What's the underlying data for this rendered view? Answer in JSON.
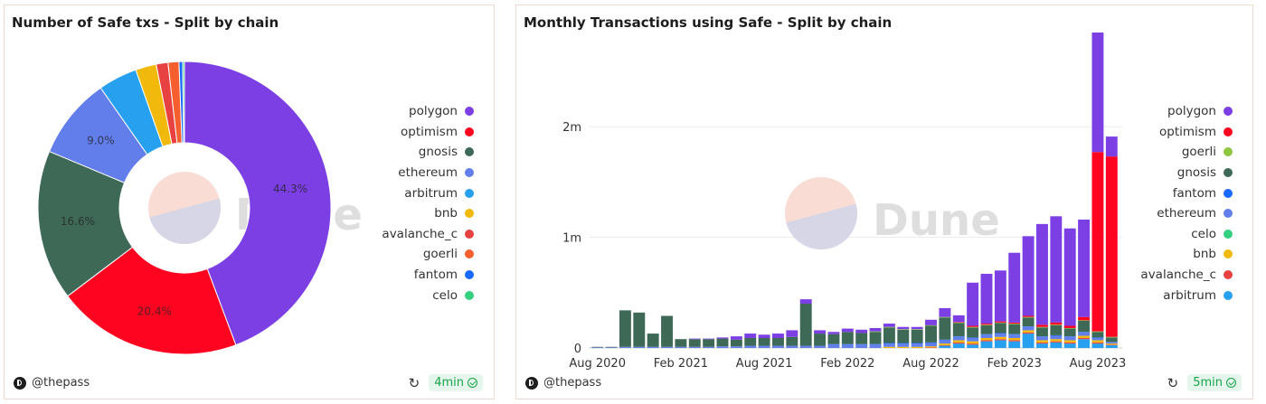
{
  "watermark": "Dune",
  "panels": {
    "pie": {
      "title": "Number of Safe txs - Split by chain",
      "author": "@thepass",
      "freshness": "4min"
    },
    "bar": {
      "title": "Monthly Transactions using Safe - Split by chain",
      "author": "@thepass",
      "freshness": "5min"
    }
  },
  "chart_data": [
    {
      "type": "pie",
      "title": "Number of Safe txs - Split by chain",
      "slices": [
        {
          "label": "polygon",
          "value": 44.3,
          "color": "#7b3fe4",
          "show_label": true
        },
        {
          "label": "optimism",
          "value": 20.4,
          "color": "#ff0420",
          "show_label": true
        },
        {
          "label": "gnosis",
          "value": 16.6,
          "color": "#3e6957",
          "show_label": true
        },
        {
          "label": "ethereum",
          "value": 9.0,
          "color": "#627eea",
          "show_label": true
        },
        {
          "label": "arbitrum",
          "value": 4.3,
          "color": "#28a0f0",
          "show_label": false
        },
        {
          "label": "bnb",
          "value": 2.3,
          "color": "#f0b90b",
          "show_label": false
        },
        {
          "label": "avalanche_c",
          "value": 1.3,
          "color": "#e84142",
          "show_label": false
        },
        {
          "label": "goerli",
          "value": 1.2,
          "color": "#f55e2f",
          "show_label": false
        },
        {
          "label": "fantom",
          "value": 0.4,
          "color": "#1969ff",
          "show_label": false
        },
        {
          "label": "celo",
          "value": 0.2,
          "color": "#35d07f",
          "show_label": false
        }
      ],
      "slice_label_format": "{v}%"
    },
    {
      "type": "bar",
      "stacked": true,
      "title": "Monthly Transactions using Safe - Split by chain",
      "y_ticks": [
        {
          "value": 0,
          "label": "0"
        },
        {
          "value": 1000000,
          "label": "1m"
        },
        {
          "value": 2000000,
          "label": "2m"
        }
      ],
      "ylim": [
        0,
        2850000
      ],
      "x_tick_labels": [
        {
          "index": 0,
          "label": "Aug 2020"
        },
        {
          "index": 6,
          "label": "Feb 2021"
        },
        {
          "index": 12,
          "label": "Aug 2021"
        },
        {
          "index": 18,
          "label": "Feb 2022"
        },
        {
          "index": 24,
          "label": "Aug 2022"
        },
        {
          "index": 30,
          "label": "Feb 2023"
        },
        {
          "index": 36,
          "label": "Aug 2023"
        }
      ],
      "categories": [
        "Aug 2020",
        "Sep 2020",
        "Oct 2020",
        "Nov 2020",
        "Dec 2020",
        "Jan 2021",
        "Feb 2021",
        "Mar 2021",
        "Apr 2021",
        "May 2021",
        "Jun 2021",
        "Jul 2021",
        "Aug 2021",
        "Sep 2021",
        "Oct 2021",
        "Nov 2021",
        "Dec 2021",
        "Jan 2022",
        "Feb 2022",
        "Mar 2022",
        "Apr 2022",
        "May 2022",
        "Jun 2022",
        "Jul 2022",
        "Aug 2022",
        "Sep 2022",
        "Oct 2022",
        "Nov 2022",
        "Dec 2022",
        "Jan 2023",
        "Feb 2023",
        "Mar 2023",
        "Apr 2023",
        "May 2023",
        "Jun 2023",
        "Jul 2023",
        "Aug 2023",
        "Sep 2023"
      ],
      "series": [
        {
          "name": "arbitrum",
          "color": "#28a0f0",
          "values": [
            0,
            0,
            0,
            0,
            0,
            0,
            0,
            0,
            0,
            0,
            0,
            0,
            0,
            0,
            0,
            0,
            0,
            0,
            0,
            0,
            0,
            0,
            0,
            0,
            0,
            20000,
            40000,
            30000,
            60000,
            70000,
            60000,
            130000,
            40000,
            50000,
            40000,
            80000,
            40000,
            25000
          ]
        },
        {
          "name": "avalanche_c",
          "color": "#e84142",
          "values": [
            0,
            0,
            0,
            0,
            0,
            0,
            0,
            0,
            0,
            0,
            0,
            0,
            0,
            0,
            0,
            0,
            0,
            0,
            0,
            0,
            0,
            0,
            0,
            0,
            5000,
            5000,
            10000,
            10000,
            10000,
            10000,
            10000,
            10000,
            10000,
            10000,
            10000,
            10000,
            10000,
            5000
          ]
        },
        {
          "name": "bnb",
          "color": "#f0b90b",
          "values": [
            0,
            0,
            0,
            0,
            0,
            0,
            0,
            0,
            0,
            0,
            0,
            0,
            0,
            0,
            0,
            0,
            0,
            0,
            0,
            0,
            0,
            10000,
            10000,
            10000,
            10000,
            15000,
            20000,
            20000,
            20000,
            20000,
            20000,
            20000,
            20000,
            20000,
            20000,
            20000,
            20000,
            10000
          ]
        },
        {
          "name": "celo",
          "color": "#35d07f",
          "values": [
            0,
            0,
            0,
            0,
            0,
            0,
            0,
            0,
            0,
            0,
            0,
            0,
            0,
            0,
            0,
            0,
            0,
            0,
            0,
            0,
            0,
            0,
            0,
            0,
            0,
            0,
            0,
            0,
            0,
            0,
            0,
            0,
            0,
            0,
            0,
            0,
            0,
            0
          ]
        },
        {
          "name": "ethereum",
          "color": "#627eea",
          "values": [
            5000,
            5000,
            10000,
            10000,
            10000,
            10000,
            10000,
            10000,
            10000,
            15000,
            15000,
            20000,
            20000,
            20000,
            20000,
            20000,
            20000,
            30000,
            30000,
            30000,
            30000,
            30000,
            30000,
            30000,
            30000,
            30000,
            30000,
            30000,
            30000,
            30000,
            30000,
            30000,
            30000,
            30000,
            30000,
            30000,
            20000,
            15000
          ]
        },
        {
          "name": "fantom",
          "color": "#1969ff",
          "values": [
            0,
            0,
            0,
            0,
            0,
            0,
            0,
            0,
            0,
            0,
            0,
            0,
            0,
            0,
            0,
            0,
            0,
            5000,
            5000,
            5000,
            5000,
            5000,
            5000,
            5000,
            5000,
            5000,
            5000,
            5000,
            5000,
            5000,
            5000,
            5000,
            5000,
            5000,
            5000,
            5000,
            5000,
            0
          ]
        },
        {
          "name": "gnosis",
          "color": "#3e6957",
          "values": [
            5000,
            5000,
            330000,
            310000,
            120000,
            280000,
            70000,
            70000,
            70000,
            70000,
            60000,
            70000,
            70000,
            70000,
            80000,
            380000,
            110000,
            90000,
            110000,
            100000,
            110000,
            140000,
            120000,
            120000,
            150000,
            200000,
            120000,
            90000,
            80000,
            90000,
            90000,
            80000,
            80000,
            90000,
            70000,
            100000,
            50000,
            40000
          ]
        },
        {
          "name": "goerli",
          "color": "#8dc63f",
          "values": [
            0,
            0,
            0,
            0,
            0,
            0,
            0,
            0,
            0,
            0,
            0,
            0,
            0,
            0,
            0,
            0,
            0,
            0,
            0,
            0,
            5000,
            5000,
            5000,
            5000,
            5000,
            5000,
            5000,
            5000,
            5000,
            5000,
            5000,
            5000,
            5000,
            5000,
            5000,
            5000,
            5000,
            5000
          ]
        },
        {
          "name": "optimism",
          "color": "#ff0420",
          "values": [
            0,
            0,
            0,
            0,
            0,
            0,
            0,
            0,
            0,
            0,
            0,
            0,
            0,
            0,
            0,
            0,
            0,
            0,
            0,
            0,
            0,
            0,
            0,
            0,
            0,
            0,
            5000,
            10000,
            10000,
            10000,
            10000,
            10000,
            20000,
            20000,
            20000,
            30000,
            1620000,
            1630000
          ]
        },
        {
          "name": "polygon",
          "color": "#7b3fe4",
          "values": [
            0,
            0,
            0,
            0,
            0,
            0,
            0,
            5000,
            5000,
            10000,
            30000,
            40000,
            30000,
            40000,
            60000,
            40000,
            30000,
            20000,
            30000,
            30000,
            30000,
            30000,
            20000,
            20000,
            50000,
            80000,
            60000,
            390000,
            450000,
            460000,
            630000,
            720000,
            910000,
            960000,
            880000,
            880000,
            1080000,
            180000
          ]
        }
      ]
    }
  ],
  "pie_legend": [
    "polygon",
    "optimism",
    "gnosis",
    "ethereum",
    "arbitrum",
    "bnb",
    "avalanche_c",
    "goerli",
    "fantom",
    "celo"
  ],
  "bar_legend": [
    "polygon",
    "optimism",
    "goerli",
    "gnosis",
    "fantom",
    "ethereum",
    "celo",
    "bnb",
    "avalanche_c",
    "arbitrum"
  ]
}
